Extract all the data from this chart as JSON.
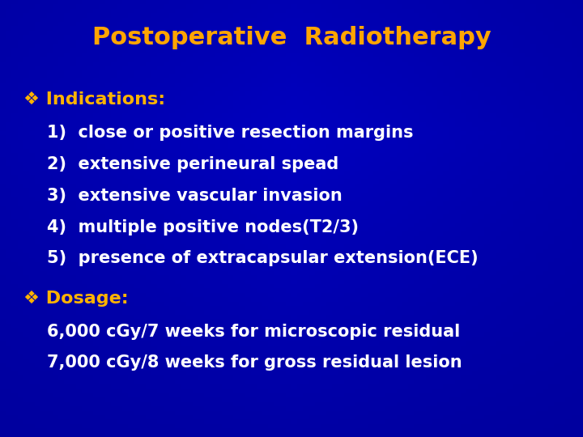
{
  "title": "Postoperative  Radiotherapy",
  "title_color": "#FFA500",
  "title_fontsize": 22,
  "background_color": "#0000BB",
  "bullet_color": "#FFB300",
  "text_color_white": "#FFFFFF",
  "section1_header": "❖ Indications:",
  "section1_items": [
    "1)  close or positive resection margins",
    "2)  extensive perineural spead",
    "3)  extensive vascular invasion",
    "4)  multiple positive nodes(T2/3)",
    "5)  presence of extracapsular extension(ECE)"
  ],
  "section2_header": "❖ Dosage:",
  "section2_items": [
    "6,000 cGy/7 weeks for microscopic residual",
    "7,000 cGy/8 weeks for gross residual lesion"
  ],
  "header_fontsize": 16,
  "item_fontsize": 15,
  "figwidth": 7.2,
  "figheight": 5.4,
  "dpi": 100
}
